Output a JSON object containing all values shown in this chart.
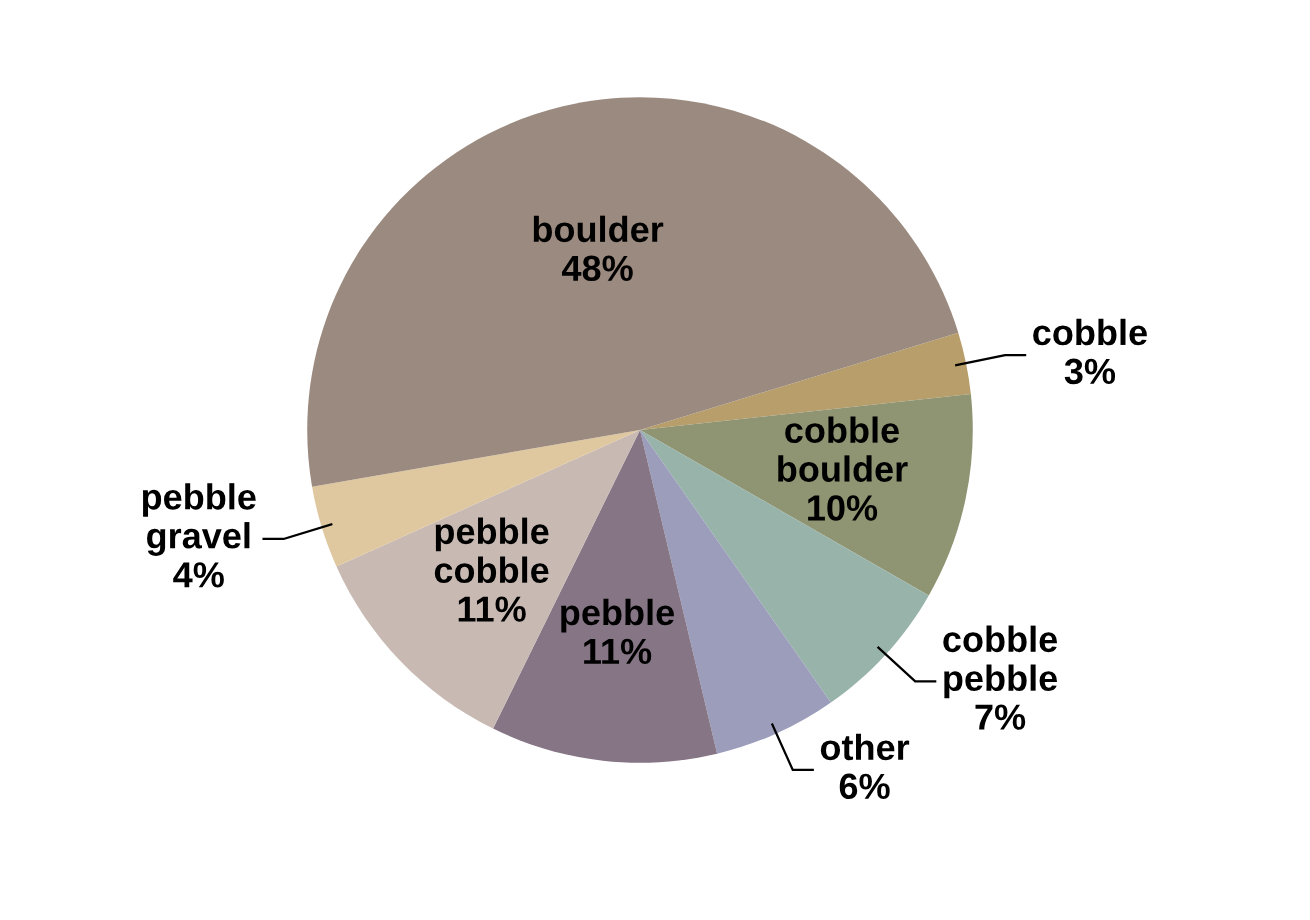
{
  "chart_data": {
    "type": "pie",
    "categories": [
      "cobble",
      "cobble boulder",
      "cobble pebble",
      "other",
      "pebble",
      "pebble cobble",
      "pebble gravel",
      "boulder"
    ],
    "values": [
      3,
      10,
      7,
      6,
      11,
      11,
      4,
      48
    ],
    "value_labels": [
      "3%",
      "10%",
      "7%",
      "6%",
      "11%",
      "11%",
      "4%",
      "48%"
    ],
    "colors": [
      "#b89e6a",
      "#8f9472",
      "#98b3aa",
      "#9b9dbb",
      "#857585",
      "#c8bab3",
      "#dfc7a0",
      "#9b8a7f"
    ],
    "legend": false
  }
}
